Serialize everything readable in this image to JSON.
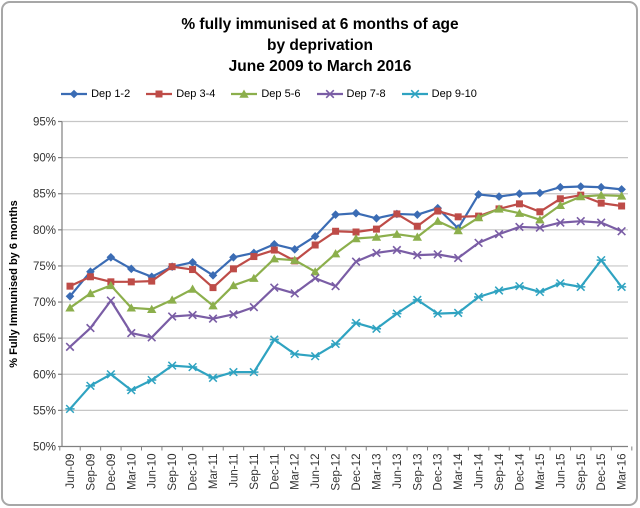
{
  "window": {
    "background_color": "#ffffff",
    "border_color": "#a7a7a7"
  },
  "chart_data": {
    "type": "line",
    "title_lines": [
      "% fully immunised at 6 months of age",
      "by deprivation",
      "June 2009 to March 2016"
    ],
    "ylabel": "% Fully Immunised by 6 months",
    "xlabel": "",
    "ylim": [
      50,
      95
    ],
    "y_tick_step": 5,
    "y_tick_labels": [
      "50%",
      "55%",
      "60%",
      "65%",
      "70%",
      "75%",
      "80%",
      "85%",
      "90%",
      "95%"
    ],
    "grid": true,
    "legend_position": "top",
    "gridline_color": "#c6c6c6",
    "axis_color": "#808080",
    "tick_label_color": "#333333",
    "categories": [
      "Jun-09",
      "Sep-09",
      "Dec-09",
      "Mar-10",
      "Jun-10",
      "Sep-10",
      "Dec-10",
      "Mar-11",
      "Jun-11",
      "Sep-11",
      "Dec-11",
      "Mar-12",
      "Jun-12",
      "Sep-12",
      "Dec-12",
      "Mar-13",
      "Jun-13",
      "Sep-13",
      "Dec-13",
      "Mar-14",
      "Jun-14",
      "Sep-14",
      "Dec-14",
      "Mar-15",
      "Jun-15",
      "Sep-15",
      "Dec-15",
      "Mar-16"
    ],
    "series": [
      {
        "name": "Dep 1-2",
        "color": "#3b6cb4",
        "marker": "diamond",
        "values": [
          70.8,
          74.2,
          76.2,
          74.6,
          73.5,
          74.9,
          75.5,
          73.7,
          76.2,
          76.8,
          78.0,
          77.3,
          79.1,
          82.1,
          82.3,
          81.6,
          82.2,
          82.1,
          83.0,
          80.2,
          84.9,
          84.6,
          85.0,
          85.1,
          85.9,
          86.0,
          85.9,
          85.6
        ]
      },
      {
        "name": "Dep 3-4",
        "color": "#be4c48",
        "marker": "square",
        "values": [
          72.2,
          73.5,
          72.8,
          72.8,
          72.9,
          74.9,
          74.5,
          72.0,
          74.6,
          76.3,
          77.2,
          75.7,
          77.9,
          79.8,
          79.7,
          80.1,
          82.2,
          80.5,
          82.6,
          81.8,
          81.9,
          82.9,
          83.6,
          82.5,
          84.3,
          84.8,
          83.7,
          83.3
        ]
      },
      {
        "name": "Dep 5-6",
        "color": "#8caf4c",
        "marker": "triangle",
        "values": [
          69.2,
          71.2,
          72.3,
          69.2,
          69.0,
          70.3,
          71.8,
          69.5,
          72.3,
          73.3,
          76.0,
          75.8,
          74.2,
          76.7,
          78.8,
          79.0,
          79.4,
          79.0,
          81.2,
          79.9,
          81.7,
          82.9,
          82.3,
          81.4,
          83.4,
          84.6,
          84.8,
          84.7
        ]
      },
      {
        "name": "Dep 7-8",
        "color": "#7a5da5",
        "marker": "x",
        "values": [
          63.8,
          66.4,
          70.2,
          65.7,
          65.1,
          68.0,
          68.2,
          67.7,
          68.3,
          69.3,
          72.0,
          71.2,
          73.3,
          72.2,
          75.6,
          76.8,
          77.2,
          76.5,
          76.6,
          76.1,
          78.2,
          79.4,
          80.4,
          80.3,
          81.0,
          81.2,
          81.0,
          79.8
        ]
      },
      {
        "name": "Dep 9-10",
        "color": "#2fa3c1",
        "marker": "star",
        "values": [
          55.2,
          58.4,
          60.0,
          57.8,
          59.2,
          61.2,
          61.0,
          59.5,
          60.3,
          60.3,
          64.8,
          62.8,
          62.5,
          64.2,
          67.1,
          66.3,
          68.4,
          70.3,
          68.4,
          68.5,
          70.7,
          71.6,
          72.2,
          71.4,
          72.6,
          72.1,
          75.8,
          72.1
        ]
      }
    ]
  }
}
